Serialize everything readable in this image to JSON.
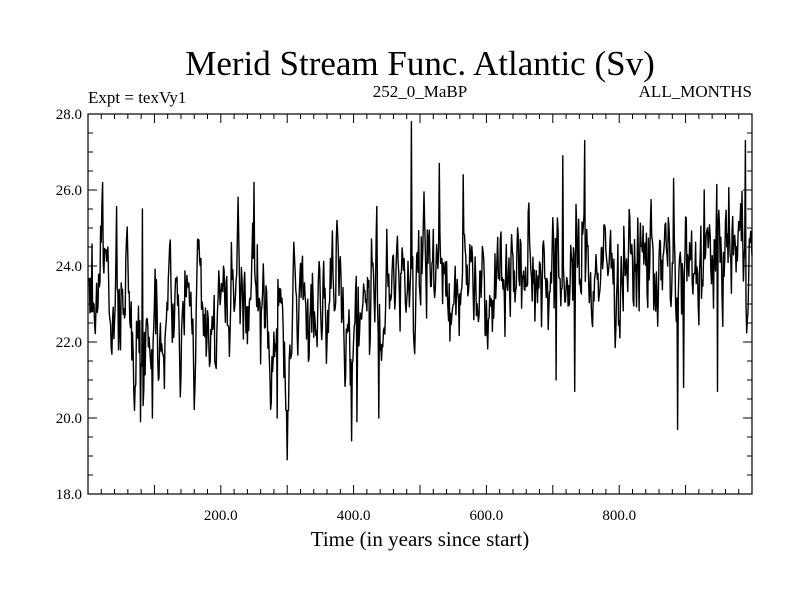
{
  "chart_data": {
    "type": "line",
    "title": "Merid Stream Func. Atlantic (Sv)",
    "subtitle_left": "Expt = texVy1",
    "subtitle_center": "252_0_MaBP",
    "subtitle_right": "ALL_MONTHS",
    "xlabel": "Time (in years since start)",
    "ylabel": "",
    "xlim": [
      0,
      1000
    ],
    "ylim": [
      18.0,
      28.0
    ],
    "xticks": [
      200,
      400,
      600,
      800
    ],
    "xtick_labels": [
      "200.0",
      "400.0",
      "600.0",
      "800.0"
    ],
    "yticks": [
      18,
      20,
      22,
      24,
      26,
      28
    ],
    "ytick_labels": [
      "18.0",
      "20.0",
      "22.0",
      "24.0",
      "26.0",
      "28.0"
    ],
    "grid": false,
    "series": [
      {
        "name": "Merid Stream Func. Atlantic",
        "x_start": 1,
        "x_step": 1,
        "summary": {
          "n": 1000,
          "mean_start": 23.2,
          "mean_end": 24.2,
          "std": 0.9,
          "min": 18.9,
          "max": 27.8
        },
        "x": [
          1,
          5,
          10,
          20,
          30,
          40,
          50,
          60,
          70,
          80,
          90,
          100,
          110,
          120,
          130,
          140,
          150,
          160,
          170,
          180,
          190,
          200,
          210,
          220,
          230,
          240,
          250,
          260,
          270,
          280,
          290,
          300,
          310,
          320,
          330,
          340,
          350,
          360,
          370,
          380,
          390,
          400,
          410,
          420,
          430,
          440,
          450,
          460,
          470,
          480,
          490,
          500,
          510,
          520,
          530,
          540,
          550,
          560,
          570,
          580,
          590,
          600,
          610,
          620,
          630,
          640,
          650,
          660,
          670,
          680,
          690,
          700,
          710,
          720,
          730,
          740,
          750,
          760,
          770,
          780,
          790,
          800,
          810,
          820,
          830,
          840,
          850,
          860,
          870,
          880,
          890,
          900,
          910,
          920,
          930,
          940,
          950,
          960,
          970,
          980,
          990,
          1000
        ],
        "values": [
          23.0,
          23.4,
          22.8,
          24.6,
          23.9,
          23.1,
          22.7,
          23.5,
          22.0,
          21.5,
          22.3,
          23.0,
          22.5,
          22.8,
          23.4,
          22.1,
          23.0,
          22.6,
          23.3,
          22.4,
          22.9,
          23.2,
          22.2,
          23.5,
          22.8,
          23.1,
          23.6,
          22.7,
          22.5,
          21.9,
          22.8,
          20.5,
          22.6,
          23.4,
          22.9,
          23.1,
          23.6,
          22.8,
          23.2,
          23.5,
          22.6,
          21.9,
          23.3,
          23.0,
          23.5,
          22.7,
          23.4,
          23.0,
          23.6,
          24.0,
          23.8,
          24.1,
          23.7,
          24.4,
          23.5,
          24.0,
          23.2,
          23.9,
          23.5,
          24.1,
          23.8,
          23.4,
          24.0,
          23.7,
          23.9,
          24.2,
          23.6,
          24.0,
          23.5,
          24.3,
          23.9,
          24.1,
          23.4,
          23.8,
          24.2,
          23.6,
          24.5,
          23.7,
          24.0,
          23.8,
          24.1,
          23.5,
          24.3,
          23.9,
          24.2,
          24.0,
          24.6,
          23.6,
          24.1,
          23.8,
          23.4,
          24.0,
          23.5,
          24.2,
          23.9,
          24.4,
          24.1,
          24.6,
          24.3,
          24.8,
          24.5,
          24.2
        ],
        "spikes_high": [
          [
            82,
            25.5
          ],
          [
            250,
            26.2
          ],
          [
            487,
            27.8
          ],
          [
            529,
            26.7
          ],
          [
            565,
            26.4
          ],
          [
            715,
            26.9
          ],
          [
            748,
            27.3
          ],
          [
            882,
            26.3
          ],
          [
            928,
            26.0
          ],
          [
            990,
            27.3
          ]
        ],
        "spikes_low": [
          [
            79,
            19.9
          ],
          [
            97,
            20.0
          ],
          [
            285,
            20.0
          ],
          [
            300,
            18.9
          ],
          [
            397,
            19.4
          ],
          [
            405,
            19.9
          ],
          [
            438,
            20.0
          ],
          [
            705,
            21.0
          ],
          [
            733,
            20.7
          ],
          [
            888,
            19.7
          ],
          [
            897,
            20.8
          ],
          [
            948,
            20.7
          ]
        ]
      }
    ]
  }
}
